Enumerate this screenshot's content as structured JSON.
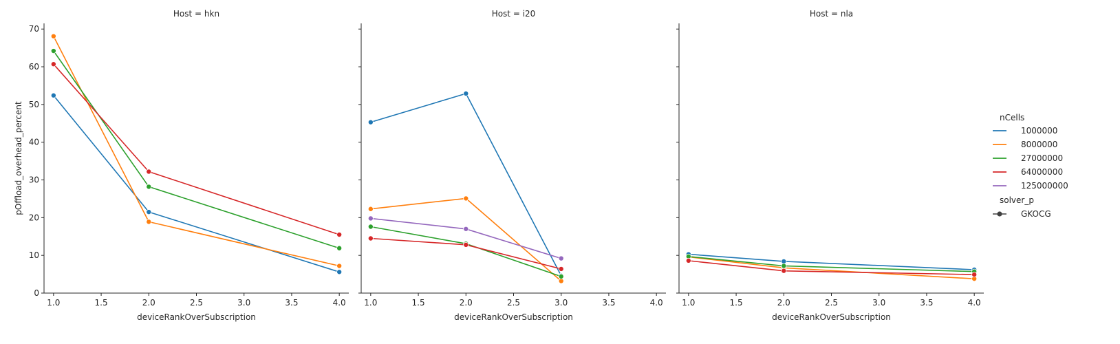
{
  "chart_data": {
    "type": "line",
    "ylabel": "pOffload_overhead_percent",
    "xlabel": "deviceRankOverSubscription",
    "xlim": [
      0.9,
      4.1
    ],
    "ylim": [
      0,
      71.5
    ],
    "xticks": [
      "1.0",
      "1.5",
      "2.0",
      "2.5",
      "3.0",
      "3.5",
      "4.0"
    ],
    "yticks": [
      "0",
      "10",
      "20",
      "30",
      "40",
      "50",
      "60",
      "70"
    ],
    "grid": false,
    "legend": {
      "placement": "right",
      "hue_title": "nCells",
      "style_title": "solver_p",
      "style_entries": [
        {
          "label": "GKOCG"
        }
      ]
    },
    "colors": {
      "1000000": "#1f77b4",
      "8000000": "#ff7f0e",
      "27000000": "#2ca02c",
      "64000000": "#d62728",
      "125000000": "#9467bd"
    },
    "legend_order": [
      "1000000",
      "8000000",
      "27000000",
      "64000000",
      "125000000"
    ],
    "panels": [
      {
        "title": "Host = hkn",
        "series": [
          {
            "name": "1000000",
            "x": [
              1,
              2,
              4
            ],
            "values": [
              52.4,
              21.5,
              5.6
            ]
          },
          {
            "name": "8000000",
            "x": [
              1,
              2,
              4
            ],
            "values": [
              68.1,
              18.9,
              7.2
            ]
          },
          {
            "name": "27000000",
            "x": [
              1,
              2,
              4
            ],
            "values": [
              64.2,
              28.2,
              11.9
            ]
          },
          {
            "name": "64000000",
            "x": [
              1,
              2,
              4
            ],
            "values": [
              60.7,
              32.2,
              15.5
            ]
          }
        ]
      },
      {
        "title": "Host = i20",
        "series": [
          {
            "name": "1000000",
            "x": [
              1,
              2,
              3
            ],
            "values": [
              45.3,
              52.9,
              4.6
            ]
          },
          {
            "name": "8000000",
            "x": [
              1,
              2,
              3
            ],
            "values": [
              22.3,
              25.1,
              3.2
            ]
          },
          {
            "name": "27000000",
            "x": [
              1,
              2,
              3
            ],
            "values": [
              17.6,
              13.1,
              4.4
            ]
          },
          {
            "name": "64000000",
            "x": [
              1,
              2,
              3
            ],
            "values": [
              14.5,
              12.8,
              6.4
            ]
          },
          {
            "name": "125000000",
            "x": [
              1,
              2,
              3
            ],
            "values": [
              19.8,
              17.0,
              9.2
            ]
          }
        ]
      },
      {
        "title": "Host = nla",
        "series": [
          {
            "name": "1000000",
            "x": [
              1,
              2,
              4
            ],
            "values": [
              10.3,
              8.4,
              6.2
            ]
          },
          {
            "name": "8000000",
            "x": [
              1,
              2,
              4
            ],
            "values": [
              9.6,
              6.7,
              3.8
            ]
          },
          {
            "name": "27000000",
            "x": [
              1,
              2,
              4
            ],
            "values": [
              9.7,
              7.2,
              5.7
            ]
          },
          {
            "name": "64000000",
            "x": [
              1,
              2,
              4
            ],
            "values": [
              8.6,
              5.9,
              4.9
            ]
          }
        ]
      }
    ]
  }
}
